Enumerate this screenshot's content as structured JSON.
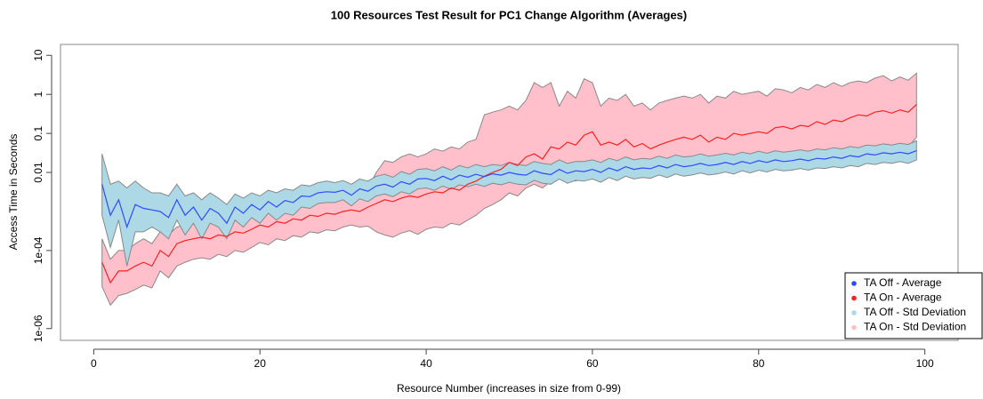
{
  "chart_data": {
    "type": "line",
    "title": "100 Resources Test Result for PC1 Change Algorithm (Averages)",
    "x_label": "Resource Number (increases in size from 0-99)",
    "y_label": "Access Time in Seconds",
    "log_y": true,
    "legend": "bottomright",
    "xlim": [
      -4,
      104
    ],
    "ylim": [
      5e-07,
      19
    ],
    "xticks": [
      0,
      20,
      40,
      60,
      80,
      100
    ],
    "yticks": [
      10,
      1,
      0.1,
      0.01,
      {
        "value": 0.0001,
        "label": "1e-04"
      },
      {
        "value": 1e-06,
        "label": "1e-06"
      }
    ],
    "x": [
      1,
      2,
      3,
      4,
      5,
      6,
      7,
      8,
      9,
      10,
      11,
      12,
      13,
      14,
      15,
      16,
      17,
      18,
      19,
      20,
      21,
      22,
      23,
      24,
      25,
      26,
      27,
      28,
      29,
      30,
      31,
      32,
      33,
      34,
      35,
      36,
      37,
      38,
      39,
      40,
      41,
      42,
      43,
      44,
      45,
      46,
      47,
      48,
      49,
      50,
      51,
      52,
      53,
      54,
      55,
      56,
      57,
      58,
      59,
      60,
      61,
      62,
      63,
      64,
      65,
      66,
      67,
      68,
      69,
      70,
      71,
      72,
      73,
      74,
      75,
      76,
      77,
      78,
      79,
      80,
      81,
      82,
      83,
      84,
      85,
      86,
      87,
      88,
      89,
      90,
      91,
      92,
      93,
      94,
      95,
      96,
      97,
      98,
      99
    ],
    "series": [
      {
        "name": "TA Off - Average",
        "color": "#2f4bff",
        "values": [
          0.005,
          0.0008,
          0.002,
          0.0004,
          0.0015,
          0.0012,
          0.0011,
          0.001,
          0.0007,
          0.002,
          0.0008,
          0.0013,
          0.0006,
          0.0012,
          0.0009,
          0.0005,
          0.0013,
          0.0009,
          0.0015,
          0.0011,
          0.0018,
          0.0013,
          0.0019,
          0.0017,
          0.0025,
          0.0024,
          0.003,
          0.0032,
          0.0031,
          0.0035,
          0.0026,
          0.0038,
          0.0033,
          0.0045,
          0.005,
          0.0042,
          0.0058,
          0.005,
          0.0068,
          0.007,
          0.0062,
          0.008,
          0.0065,
          0.0085,
          0.0075,
          0.009,
          0.0078,
          0.0092,
          0.0085,
          0.01,
          0.009,
          0.0085,
          0.011,
          0.0095,
          0.0088,
          0.012,
          0.0095,
          0.011,
          0.0105,
          0.012,
          0.01,
          0.013,
          0.011,
          0.014,
          0.012,
          0.013,
          0.0125,
          0.015,
          0.013,
          0.016,
          0.014,
          0.015,
          0.017,
          0.015,
          0.016,
          0.018,
          0.016,
          0.019,
          0.017,
          0.02,
          0.018,
          0.021,
          0.019,
          0.02,
          0.022,
          0.02,
          0.023,
          0.022,
          0.025,
          0.023,
          0.027,
          0.025,
          0.03,
          0.028,
          0.032,
          0.03,
          0.033,
          0.03,
          0.036
        ]
      },
      {
        "name": "TA On - Average",
        "color": "#ff2020",
        "values": [
          5e-05,
          1.5e-05,
          3e-05,
          3e-05,
          4e-05,
          5e-05,
          4e-05,
          0.0001,
          7e-05,
          0.00015,
          0.00018,
          0.0002,
          0.00022,
          0.0002,
          0.00025,
          0.00023,
          0.0003,
          0.00028,
          0.00035,
          0.00045,
          0.0004,
          0.00055,
          0.0005,
          0.00065,
          0.0006,
          0.0008,
          0.00075,
          0.0009,
          0.00085,
          0.001,
          0.0011,
          0.001,
          0.0013,
          0.0016,
          0.002,
          0.0018,
          0.0022,
          0.0025,
          0.0023,
          0.0028,
          0.0032,
          0.003,
          0.004,
          0.0035,
          0.005,
          0.006,
          0.008,
          0.01,
          0.012,
          0.018,
          0.015,
          0.025,
          0.03,
          0.022,
          0.045,
          0.04,
          0.06,
          0.05,
          0.09,
          0.11,
          0.05,
          0.06,
          0.05,
          0.07,
          0.045,
          0.055,
          0.04,
          0.05,
          0.06,
          0.07,
          0.08,
          0.07,
          0.09,
          0.06,
          0.08,
          0.07,
          0.1,
          0.09,
          0.1,
          0.11,
          0.1,
          0.14,
          0.15,
          0.13,
          0.16,
          0.15,
          0.2,
          0.17,
          0.22,
          0.2,
          0.25,
          0.3,
          0.28,
          0.35,
          0.38,
          0.33,
          0.4,
          0.35,
          0.55
        ]
      },
      {
        "name": "TA Off - Std Deviation",
        "color": "#add8e6",
        "upper": [
          0.03,
          0.005,
          0.006,
          0.004,
          0.006,
          0.004,
          0.003,
          0.003,
          0.0025,
          0.005,
          0.0025,
          0.003,
          0.002,
          0.003,
          0.0022,
          0.0015,
          0.0028,
          0.0022,
          0.003,
          0.0025,
          0.0035,
          0.003,
          0.0038,
          0.0035,
          0.0048,
          0.0045,
          0.0055,
          0.006,
          0.0055,
          0.0062,
          0.005,
          0.0068,
          0.006,
          0.008,
          0.009,
          0.0075,
          0.0105,
          0.009,
          0.012,
          0.0125,
          0.011,
          0.014,
          0.0115,
          0.015,
          0.013,
          0.016,
          0.014,
          0.016,
          0.015,
          0.018,
          0.016,
          0.015,
          0.019,
          0.017,
          0.016,
          0.021,
          0.017,
          0.019,
          0.019,
          0.021,
          0.018,
          0.023,
          0.02,
          0.025,
          0.021,
          0.023,
          0.022,
          0.026,
          0.023,
          0.028,
          0.025,
          0.026,
          0.03,
          0.026,
          0.028,
          0.031,
          0.028,
          0.033,
          0.03,
          0.035,
          0.031,
          0.036,
          0.033,
          0.035,
          0.038,
          0.035,
          0.04,
          0.038,
          0.043,
          0.04,
          0.046,
          0.043,
          0.05,
          0.048,
          0.054,
          0.05,
          0.056,
          0.052,
          0.065
        ],
        "lower": [
          0.0008,
          0.00012,
          0.0006,
          4e-05,
          0.0003,
          0.0003,
          0.0004,
          0.0003,
          0.0002,
          0.0006,
          0.00025,
          0.0005,
          0.0002,
          0.0005,
          0.0004,
          0.0002,
          0.0006,
          0.0004,
          0.0007,
          0.0005,
          0.0009,
          0.0006,
          0.0009,
          0.0008,
          0.0013,
          0.0012,
          0.0016,
          0.0017,
          0.0017,
          0.002,
          0.0014,
          0.0021,
          0.0018,
          0.0025,
          0.0028,
          0.0024,
          0.0032,
          0.0028,
          0.0038,
          0.004,
          0.0035,
          0.0045,
          0.0037,
          0.0048,
          0.0043,
          0.005,
          0.0044,
          0.0053,
          0.0048,
          0.0056,
          0.005,
          0.0048,
          0.0063,
          0.0053,
          0.005,
          0.0068,
          0.0053,
          0.0063,
          0.006,
          0.0068,
          0.0056,
          0.0074,
          0.0062,
          0.008,
          0.0068,
          0.0074,
          0.0071,
          0.0086,
          0.0074,
          0.0091,
          0.008,
          0.0086,
          0.0097,
          0.0086,
          0.0091,
          0.0103,
          0.0091,
          0.011,
          0.0097,
          0.0114,
          0.0103,
          0.012,
          0.011,
          0.0114,
          0.0126,
          0.0114,
          0.013,
          0.0126,
          0.014,
          0.013,
          0.015,
          0.014,
          0.017,
          0.016,
          0.018,
          0.017,
          0.019,
          0.017,
          0.021
        ]
      },
      {
        "name": "TA On - Std Deviation",
        "color": "#ffc0cb",
        "upper": [
          0.0002,
          6e-05,
          0.0001,
          0.0001,
          0.00015,
          0.0002,
          0.00015,
          0.0003,
          0.00025,
          0.0004,
          0.00045,
          0.0005,
          0.00055,
          0.0005,
          0.0006,
          0.00055,
          0.0007,
          0.00065,
          0.0008,
          0.001,
          0.0009,
          0.0012,
          0.0011,
          0.0014,
          0.0013,
          0.0017,
          0.0016,
          0.0019,
          0.0018,
          0.0021,
          0.0023,
          0.0021,
          0.004,
          0.01,
          0.02,
          0.018,
          0.025,
          0.03,
          0.025,
          0.03,
          0.04,
          0.035,
          0.045,
          0.04,
          0.06,
          0.07,
          0.3,
          0.35,
          0.4,
          0.5,
          0.4,
          0.7,
          2,
          1.5,
          2,
          0.5,
          1.2,
          0.8,
          2.5,
          2,
          0.5,
          0.8,
          0.7,
          1,
          0.5,
          0.6,
          0.4,
          0.6,
          0.7,
          0.8,
          0.9,
          0.8,
          1,
          0.6,
          0.9,
          0.8,
          1.2,
          1,
          1.1,
          1.2,
          0.9,
          1.4,
          1.3,
          1.1,
          1.5,
          1.3,
          1.8,
          1.5,
          2,
          1.6,
          2,
          2.2,
          2,
          2.6,
          3,
          2.2,
          2.8,
          2.3,
          3.5
        ],
        "lower": [
          1.2e-05,
          4e-06,
          7e-06,
          8e-06,
          1e-05,
          1.3e-05,
          1.1e-05,
          3e-05,
          2e-05,
          4e-05,
          5e-05,
          6e-05,
          6.5e-05,
          6e-05,
          8e-05,
          7e-05,
          0.0001,
          9e-05,
          0.00012,
          0.00016,
          0.00014,
          0.0002,
          0.00018,
          0.00024,
          0.00022,
          0.0003,
          0.00028,
          0.00034,
          0.00032,
          0.0004,
          0.00045,
          0.0004,
          0.00042,
          0.0003,
          0.00025,
          0.00022,
          0.00028,
          0.00032,
          0.00026,
          0.00035,
          0.0004,
          0.00038,
          0.0005,
          0.00045,
          0.0006,
          0.0008,
          0.0012,
          0.0015,
          0.002,
          0.003,
          0.0025,
          0.004,
          0.005,
          0.004,
          0.006,
          0.007,
          0.007,
          0.006,
          0.008,
          0.009,
          0.008,
          0.01,
          0.009,
          0.011,
          0.01,
          0.011,
          0.01,
          0.012,
          0.011,
          0.013,
          0.012,
          0.013,
          0.014,
          0.013,
          0.014,
          0.016,
          0.015,
          0.017,
          0.016,
          0.018,
          0.017,
          0.02,
          0.02,
          0.019,
          0.022,
          0.021,
          0.025,
          0.023,
          0.028,
          0.027,
          0.03,
          0.035,
          0.033,
          0.04,
          0.045,
          0.04,
          0.05,
          0.045,
          0.08
        ]
      }
    ]
  }
}
